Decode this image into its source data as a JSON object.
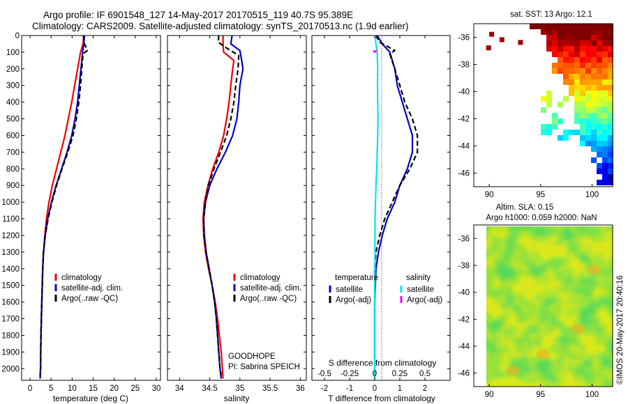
{
  "header": {
    "line1": "Argo profile: IF 6901548_127 14-May-2017 20170515_119 40.7S 95.389E",
    "line2": "Climatology: CARS2009. Satellite-adjusted climatology: synTS_20170513.nc (1.9d earlier)"
  },
  "colors": {
    "climatology": "#ee0000",
    "satellite": "#0000cc",
    "argo": "#000000",
    "argo_salinity_diff": "#ff00ff",
    "satellite_salinity_diff": "#00e5ee"
  },
  "chart_data": [
    {
      "type": "line",
      "id": "temperature",
      "xlabel": "temperature (deg C)",
      "xlim": [
        -2,
        31
      ],
      "xticks": [
        0,
        5,
        10,
        15,
        20,
        25,
        30
      ],
      "ylim": [
        0,
        2070
      ],
      "yticks": [
        0,
        100,
        200,
        300,
        400,
        500,
        600,
        700,
        800,
        900,
        1000,
        1100,
        1200,
        1300,
        1400,
        1500,
        1600,
        1700,
        1800,
        1900,
        2000
      ],
      "legend": [
        "climatology",
        "satellite-adj. clim.",
        "Argo(..raw -QC)"
      ],
      "legend_position": "bottom-right",
      "series": [
        {
          "name": "climatology",
          "color": "#ee0000",
          "points": [
            [
              12.8,
              0
            ],
            [
              12.6,
              50
            ],
            [
              12.0,
              100
            ],
            [
              11.3,
              200
            ],
            [
              10.6,
              300
            ],
            [
              9.9,
              400
            ],
            [
              9.1,
              500
            ],
            [
              8.3,
              600
            ],
            [
              7.3,
              700
            ],
            [
              6.3,
              800
            ],
            [
              5.3,
              900
            ],
            [
              4.5,
              1000
            ],
            [
              3.9,
              1100
            ],
            [
              3.5,
              1200
            ],
            [
              3.2,
              1300
            ],
            [
              3.0,
              1400
            ],
            [
              2.8,
              1600
            ],
            [
              2.6,
              1800
            ],
            [
              2.5,
              2000
            ],
            [
              2.4,
              2060
            ]
          ]
        },
        {
          "name": "satellite-adj. clim.",
          "color": "#0000cc",
          "points": [
            [
              12.9,
              0
            ],
            [
              12.8,
              50
            ],
            [
              12.5,
              100
            ],
            [
              12.1,
              200
            ],
            [
              11.7,
              300
            ],
            [
              11.3,
              400
            ],
            [
              10.7,
              500
            ],
            [
              9.9,
              600
            ],
            [
              8.8,
              700
            ],
            [
              7.5,
              800
            ],
            [
              6.2,
              900
            ],
            [
              5.1,
              1000
            ],
            [
              4.2,
              1100
            ],
            [
              3.6,
              1200
            ],
            [
              3.2,
              1300
            ],
            [
              3.0,
              1400
            ],
            [
              2.8,
              1600
            ],
            [
              2.6,
              1800
            ],
            [
              2.5,
              2000
            ],
            [
              2.4,
              2060
            ]
          ]
        },
        {
          "name": "Argo(..raw -QC)",
          "color": "#000000",
          "dashed": true,
          "points": [
            [
              12.7,
              0
            ],
            [
              12.8,
              40
            ],
            [
              13.6,
              90
            ],
            [
              12.6,
              110
            ],
            [
              12.3,
              200
            ],
            [
              12.0,
              300
            ],
            [
              11.6,
              400
            ],
            [
              11.0,
              500
            ],
            [
              10.2,
              600
            ],
            [
              9.0,
              700
            ],
            [
              7.6,
              800
            ],
            [
              6.3,
              900
            ],
            [
              5.2,
              1000
            ],
            [
              4.3,
              1100
            ],
            [
              3.6,
              1200
            ],
            [
              3.2,
              1300
            ],
            [
              3.0,
              1400
            ],
            [
              2.8,
              1600
            ],
            [
              2.6,
              1800
            ],
            [
              2.5,
              2000
            ],
            [
              2.4,
              2040
            ]
          ]
        }
      ]
    },
    {
      "type": "line",
      "id": "salinity",
      "xlabel": "salinity",
      "xlim": [
        33.8,
        36.1
      ],
      "xticks": [
        34,
        34.5,
        35,
        35.5,
        36
      ],
      "xtick_labels": [
        "34",
        "34.5",
        "35",
        "35.5",
        "36"
      ],
      "ylim": [
        0,
        2070
      ],
      "legend": [
        "climatology",
        "satellite-adj. clim.",
        "Argo(..raw -QC)"
      ],
      "legend_position": "bottom-right",
      "annotation": [
        "GOODHOPE",
        "PI: Sabrina SPEICH"
      ],
      "series": [
        {
          "name": "climatology",
          "color": "#ee0000",
          "points": [
            [
              34.72,
              0
            ],
            [
              34.72,
              50
            ],
            [
              34.73,
              100
            ],
            [
              34.9,
              150
            ],
            [
              34.88,
              200
            ],
            [
              34.85,
              300
            ],
            [
              34.82,
              400
            ],
            [
              34.78,
              500
            ],
            [
              34.73,
              600
            ],
            [
              34.65,
              700
            ],
            [
              34.55,
              800
            ],
            [
              34.47,
              900
            ],
            [
              34.41,
              1000
            ],
            [
              34.39,
              1100
            ],
            [
              34.4,
              1200
            ],
            [
              34.43,
              1300
            ],
            [
              34.48,
              1400
            ],
            [
              34.54,
              1500
            ],
            [
              34.59,
              1600
            ],
            [
              34.63,
              1700
            ],
            [
              34.66,
              1800
            ],
            [
              34.69,
              1900
            ],
            [
              34.71,
              2000
            ],
            [
              34.72,
              2060
            ]
          ]
        },
        {
          "name": "satellite-adj. clim.",
          "color": "#0000cc",
          "points": [
            [
              34.87,
              0
            ],
            [
              34.85,
              50
            ],
            [
              35.0,
              90
            ],
            [
              35.03,
              150
            ],
            [
              35.05,
              200
            ],
            [
              35.0,
              300
            ],
            [
              34.98,
              400
            ],
            [
              34.95,
              500
            ],
            [
              34.88,
              600
            ],
            [
              34.76,
              700
            ],
            [
              34.62,
              800
            ],
            [
              34.5,
              900
            ],
            [
              34.43,
              1000
            ],
            [
              34.4,
              1100
            ],
            [
              34.41,
              1200
            ],
            [
              34.44,
              1300
            ],
            [
              34.49,
              1400
            ],
            [
              34.54,
              1500
            ],
            [
              34.58,
              1600
            ],
            [
              34.61,
              1700
            ],
            [
              34.63,
              1800
            ],
            [
              34.65,
              1900
            ],
            [
              34.67,
              2000
            ],
            [
              34.69,
              2060
            ]
          ]
        },
        {
          "name": "Argo(..raw -QC)",
          "color": "#000000",
          "dashed": true,
          "points": [
            [
              34.65,
              0
            ],
            [
              34.64,
              40
            ],
            [
              34.8,
              80
            ],
            [
              34.98,
              120
            ],
            [
              34.97,
              200
            ],
            [
              34.93,
              300
            ],
            [
              34.9,
              400
            ],
            [
              34.85,
              500
            ],
            [
              34.78,
              600
            ],
            [
              34.68,
              700
            ],
            [
              34.57,
              800
            ],
            [
              34.48,
              900
            ],
            [
              34.43,
              1000
            ],
            [
              34.4,
              1100
            ],
            [
              34.41,
              1200
            ],
            [
              34.44,
              1300
            ],
            [
              34.49,
              1400
            ],
            [
              34.54,
              1500
            ],
            [
              34.58,
              1600
            ],
            [
              34.61,
              1700
            ],
            [
              34.63,
              1800
            ],
            [
              34.65,
              1900
            ],
            [
              34.67,
              2000
            ],
            [
              34.69,
              2040
            ]
          ]
        }
      ]
    },
    {
      "type": "line",
      "id": "difference",
      "xlabel": "T difference from climatology",
      "top_axis_label": "S difference from climatology",
      "xlim": [
        -2.5,
        3.0
      ],
      "xticks": [
        -2,
        -1,
        0,
        1,
        2
      ],
      "top_ticks": [
        -0.5,
        -0.25,
        0,
        0.25,
        0.5
      ],
      "top_tick_labels": [
        "-0.5",
        "-0.25",
        "0",
        "0.25",
        "0.5"
      ],
      "ylim": [
        0,
        2070
      ],
      "legend_headers": [
        "temperature",
        "salinity"
      ],
      "legend": [
        "satellite",
        "Argo(-adj)",
        "satellite",
        "Argo(-adj)"
      ],
      "series": [
        {
          "name": "temperature satellite",
          "color": "#0000cc",
          "points": [
            [
              0.1,
              0
            ],
            [
              0.3,
              50
            ],
            [
              0.6,
              100
            ],
            [
              0.8,
              200
            ],
            [
              0.9,
              300
            ],
            [
              1.1,
              400
            ],
            [
              1.3,
              500
            ],
            [
              1.5,
              600
            ],
            [
              1.5,
              700
            ],
            [
              1.3,
              800
            ],
            [
              1.0,
              900
            ],
            [
              0.8,
              1000
            ],
            [
              0.5,
              1100
            ],
            [
              0.3,
              1200
            ],
            [
              0.15,
              1300
            ],
            [
              0.05,
              1400
            ],
            [
              0,
              1600
            ],
            [
              0,
              1800
            ],
            [
              0,
              2060
            ]
          ]
        },
        {
          "name": "temperature Argo(-adj)",
          "color": "#000000",
          "dashed": true,
          "points": [
            [
              0.05,
              0
            ],
            [
              0.2,
              40
            ],
            [
              0.8,
              90
            ],
            [
              0.6,
              110
            ],
            [
              0.8,
              200
            ],
            [
              1.0,
              300
            ],
            [
              1.2,
              400
            ],
            [
              1.5,
              500
            ],
            [
              1.7,
              600
            ],
            [
              1.7,
              700
            ],
            [
              1.4,
              800
            ],
            [
              1.0,
              900
            ],
            [
              0.7,
              1000
            ],
            [
              0.4,
              1100
            ],
            [
              0.2,
              1200
            ],
            [
              0.05,
              1300
            ],
            [
              0,
              1400
            ],
            [
              0,
              1700
            ],
            [
              0,
              2040
            ]
          ]
        },
        {
          "name": "salinity satellite",
          "color": "#00e5ee",
          "points": [
            [
              0.02,
              0
            ],
            [
              0.05,
              50
            ],
            [
              0.1,
              100
            ],
            [
              0.12,
              200
            ],
            [
              0.11,
              300
            ],
            [
              0.12,
              400
            ],
            [
              0.13,
              500
            ],
            [
              0.12,
              600
            ],
            [
              0.1,
              700
            ],
            [
              0.08,
              800
            ],
            [
              0.05,
              900
            ],
            [
              0.03,
              1000
            ],
            [
              0.01,
              1100
            ],
            [
              0.01,
              1200
            ],
            [
              0.01,
              1400
            ],
            [
              0,
              1600
            ],
            [
              0,
              1800
            ],
            [
              0,
              2060
            ]
          ]
        },
        {
          "name": "salinity Argo(-adj)",
          "color": "#ff00ff",
          "dashed": true,
          "points": [
            [
              -0.06,
              90
            ],
            [
              0.0,
              100
            ],
            [
              0.06,
              90
            ],
            [
              0.08,
              110
            ]
          ]
        }
      ]
    },
    {
      "type": "heatmap",
      "id": "sst_map",
      "title": "sat. SST: 13 Argo: 12.1",
      "xlim": [
        88.5,
        102
      ],
      "ylim": [
        -47,
        -35
      ],
      "xticks": [
        90,
        95,
        100
      ],
      "yticks": [
        -36,
        -38,
        -40,
        -42,
        -44,
        -46
      ],
      "colormap": "jet"
    },
    {
      "type": "heatmap",
      "id": "sla_map",
      "title_lines": [
        "Altim. SLA: 0.15",
        "Argo h1000: 0.059 h2000: NaN"
      ],
      "xlim": [
        88.5,
        102
      ],
      "ylim": [
        -47,
        -35
      ],
      "xticks": [
        90,
        95,
        100
      ],
      "yticks": [
        -36,
        -38,
        -40,
        -42,
        -44,
        -46
      ],
      "colormap": "green-yellow"
    }
  ],
  "side_label": "©IMOS 20-May-2017 20:40:16"
}
